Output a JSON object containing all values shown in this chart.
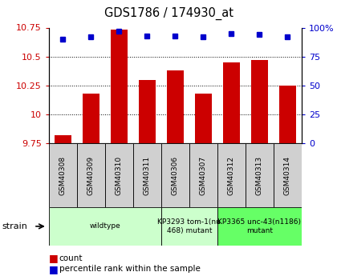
{
  "title": "GDS1786 / 174930_at",
  "samples": [
    "GSM40308",
    "GSM40309",
    "GSM40310",
    "GSM40311",
    "GSM40306",
    "GSM40307",
    "GSM40312",
    "GSM40313",
    "GSM40314"
  ],
  "counts": [
    9.82,
    10.18,
    10.73,
    10.3,
    10.38,
    10.18,
    10.45,
    10.47,
    10.25
  ],
  "percentiles": [
    90,
    92,
    97,
    93,
    93,
    92,
    95,
    94,
    92
  ],
  "ylim_left": [
    9.75,
    10.75
  ],
  "ylim_right": [
    0,
    100
  ],
  "yticks_left": [
    9.75,
    10.0,
    10.25,
    10.5,
    10.75
  ],
  "ytick_labels_left": [
    "9.75",
    "10",
    "10.25",
    "10.5",
    "10.75"
  ],
  "yticks_right": [
    0,
    25,
    50,
    75,
    100
  ],
  "ytick_labels_right": [
    "0",
    "25",
    "50",
    "75",
    "100%"
  ],
  "bar_color": "#cc0000",
  "dot_color": "#0000cc",
  "bar_bottom": 9.75,
  "group_borders": [
    {
      "start": 0,
      "end": 4,
      "label": "wildtype",
      "color": "#ccffcc"
    },
    {
      "start": 4,
      "end": 6,
      "label": "KP3293 tom-1(nu\n468) mutant",
      "color": "#ccffcc"
    },
    {
      "start": 6,
      "end": 9,
      "label": "KP3365 unc-43(n1186)\nmutant",
      "color": "#66ff66"
    }
  ],
  "sample_box_color": "#d0d0d0",
  "tick_label_color_left": "#cc0000",
  "tick_label_color_right": "#0000cc",
  "legend_count": "count",
  "legend_percentile": "percentile rank within the sample"
}
